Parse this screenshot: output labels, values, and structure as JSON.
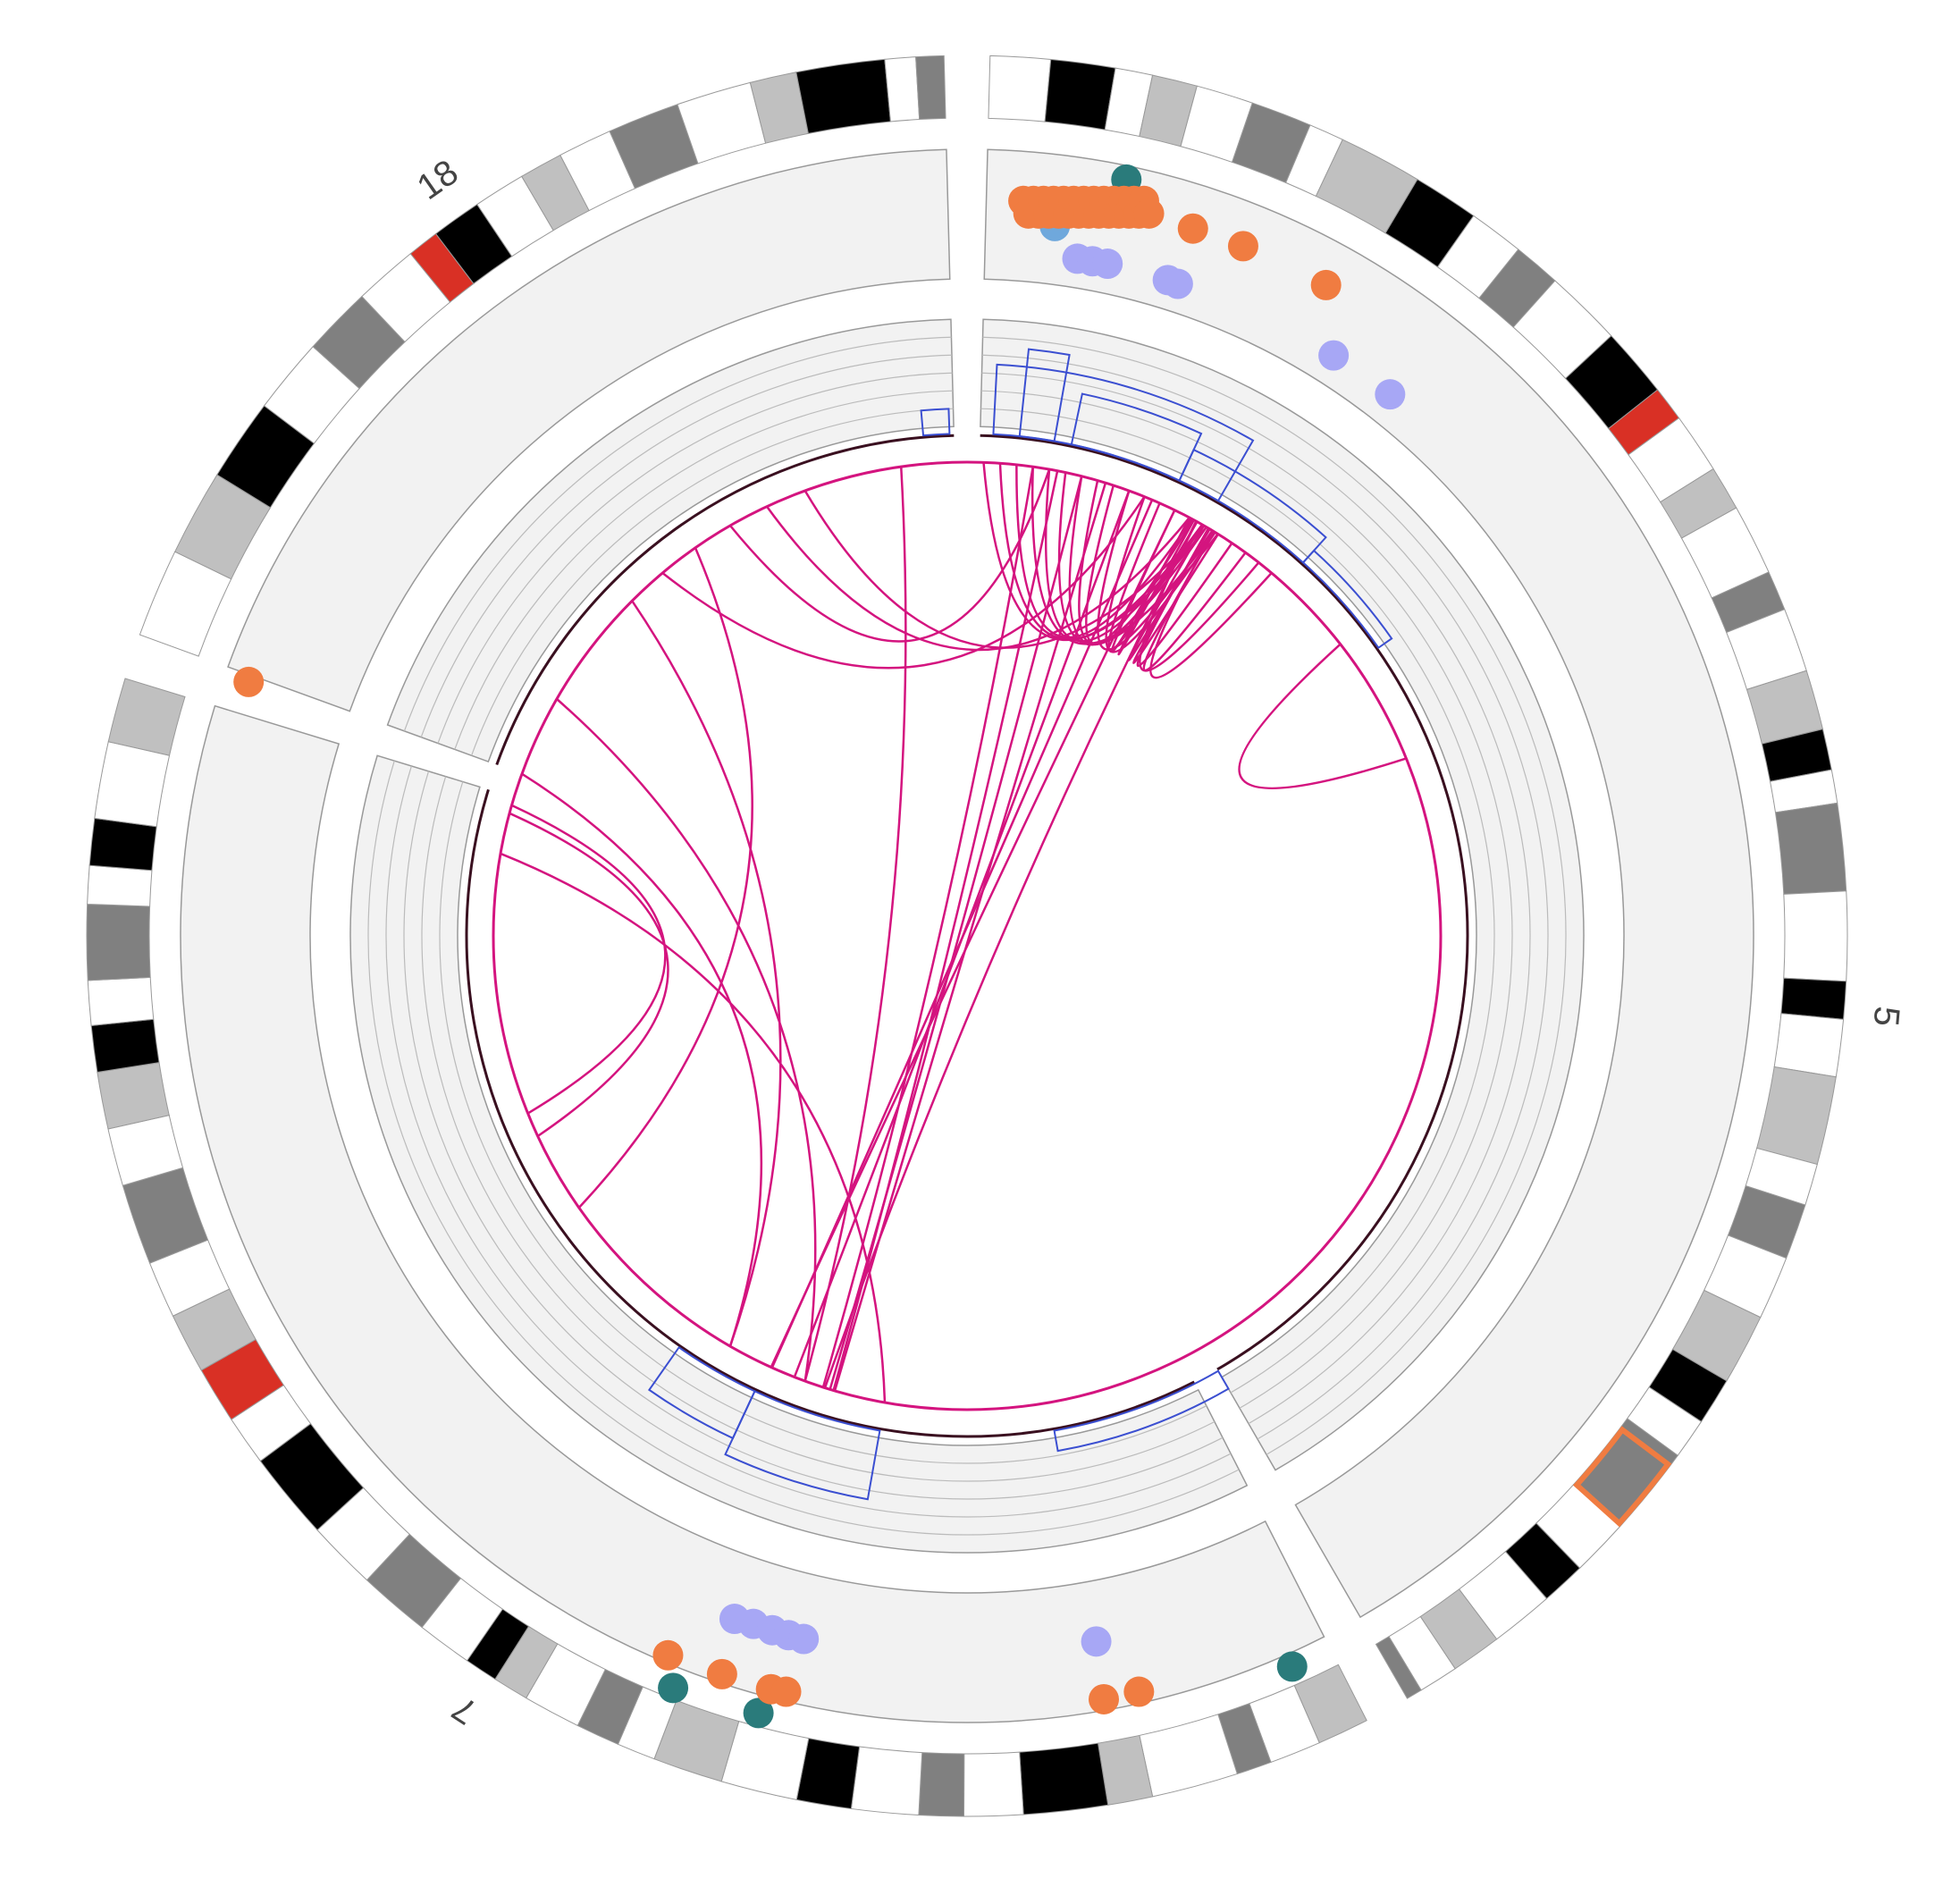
{
  "chromosomes": [
    {
      "label": "5"
    },
    {
      "label": "7"
    },
    {
      "label": "18"
    }
  ]
}
